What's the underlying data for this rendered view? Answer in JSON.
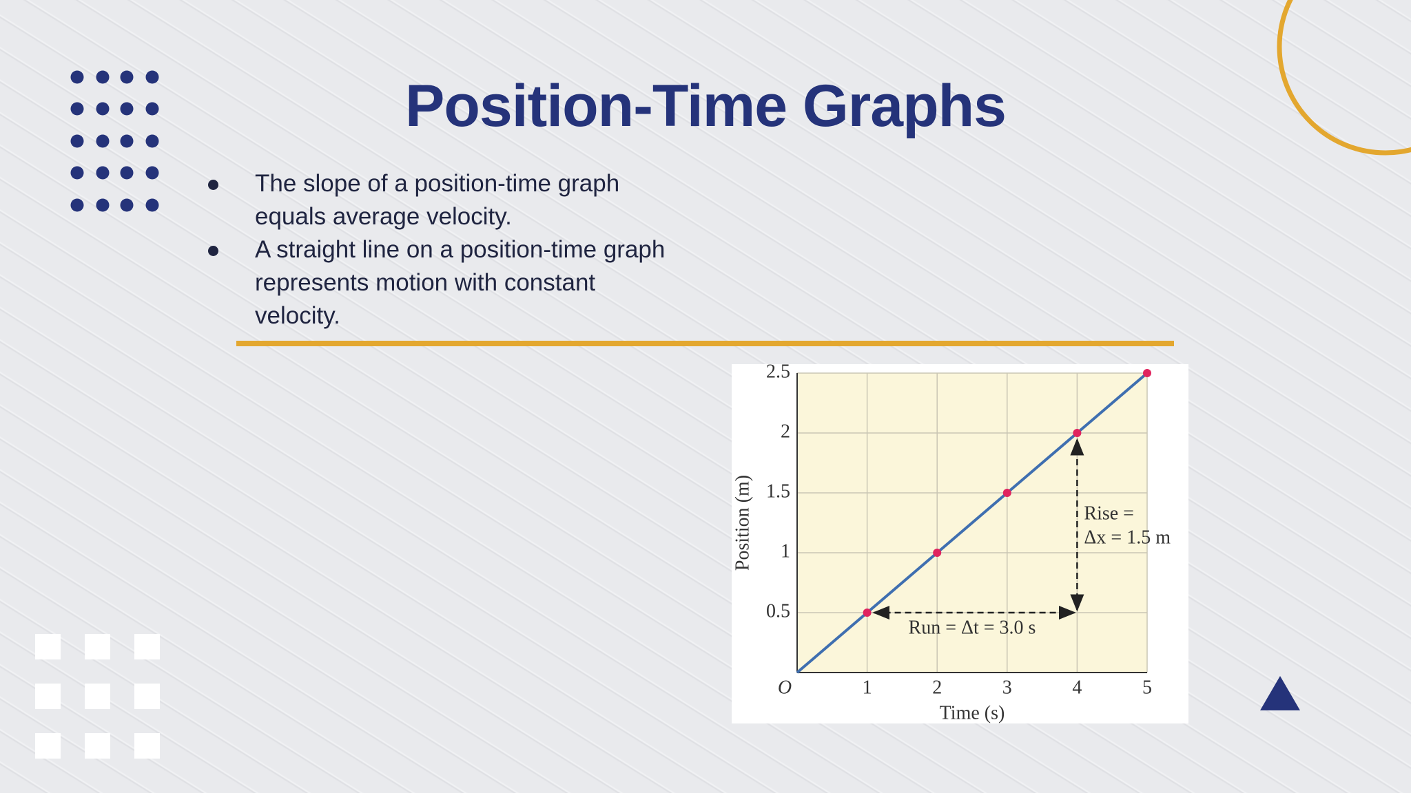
{
  "slide": {
    "title": "Position-Time Graphs",
    "bullets": [
      "The slope of a position-time graph equals average velocity.",
      "A straight line on a position-time graph represents motion with constant velocity."
    ]
  },
  "chart_data": {
    "type": "line",
    "x_label": "Time (s)",
    "y_label": "Position (m)",
    "x": [
      0,
      1,
      2,
      3,
      4,
      5
    ],
    "series": [
      {
        "color": "#3f6fb0",
        "values": [
          0,
          0.5,
          1,
          1.5,
          2,
          2.5
        ]
      }
    ],
    "points": {
      "x": [
        1,
        2,
        3,
        4,
        5
      ],
      "values": [
        0.5,
        1,
        1.5,
        2,
        2.5
      ],
      "color": "#e0245e"
    },
    "xlim": [
      0,
      5
    ],
    "ylim": [
      0,
      2.5
    ],
    "xticks": [
      {
        "value": 0,
        "label": "O"
      },
      1,
      2,
      3,
      4,
      5
    ],
    "yticks": [
      0.5,
      1,
      1.5,
      2,
      2.5
    ],
    "grid": true,
    "annotations": {
      "rise_line1": "Rise =",
      "rise_line2": "Δx = 1.5 m",
      "run": "Run = Δt = 3.0 s"
    }
  }
}
